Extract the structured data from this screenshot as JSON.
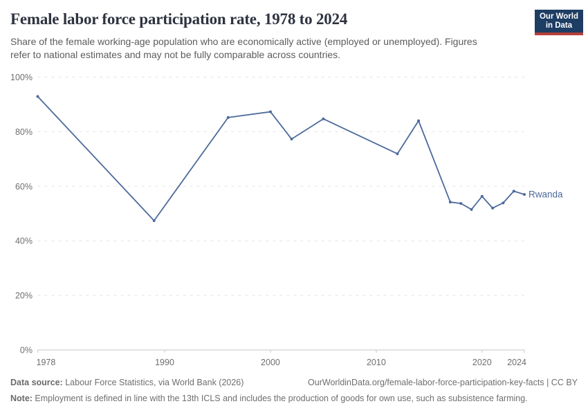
{
  "header": {
    "title": "Female labor force participation rate, 1978 to 2024",
    "subtitle": "Share of the female working-age population who are economically active (employed or unemployed). Figures\nrefer to national estimates and may not be fully comparable across countries."
  },
  "logo": {
    "line1": "Our World",
    "line2": "in Data",
    "bg_color": "#1d3d63",
    "bar_color": "#b5403a"
  },
  "chart_data": {
    "type": "line",
    "title": "Female labor force participation rate, 1978 to 2024",
    "x": [
      1978,
      1989,
      1996,
      2000,
      2002,
      2005,
      2012,
      2014,
      2017,
      2018,
      2019,
      2020,
      2021,
      2022,
      2023,
      2024
    ],
    "series": [
      {
        "name": "Rwanda",
        "color": "#4c6a9c",
        "values": [
          92.9,
          47.4,
          85.2,
          87.3,
          77.3,
          84.7,
          71.9,
          84.0,
          54.2,
          53.7,
          51.5,
          56.3,
          52.0,
          53.9,
          58.2,
          57.0
        ]
      }
    ],
    "xlabel": "",
    "ylabel": "",
    "xlim": [
      1978,
      2024
    ],
    "ylim": [
      0,
      100
    ],
    "xticks": [
      1978,
      1990,
      2000,
      2010,
      2020,
      2024
    ],
    "yticks": [
      0,
      20,
      40,
      60,
      80,
      100
    ],
    "ytick_suffix": "%",
    "grid": "horizontal-dashed",
    "legend": "end-of-line-label"
  },
  "footer": {
    "datasource_label": "Data source:",
    "datasource_text": " Labour Force Statistics, via World Bank (2026)",
    "attribution": "OurWorldinData.org/female-labor-force-participation-key-facts | CC BY",
    "note_label": "Note:",
    "note_text": " Employment is defined in line with the 13th ICLS and includes the production of goods for own use, such as subsistence farming."
  }
}
